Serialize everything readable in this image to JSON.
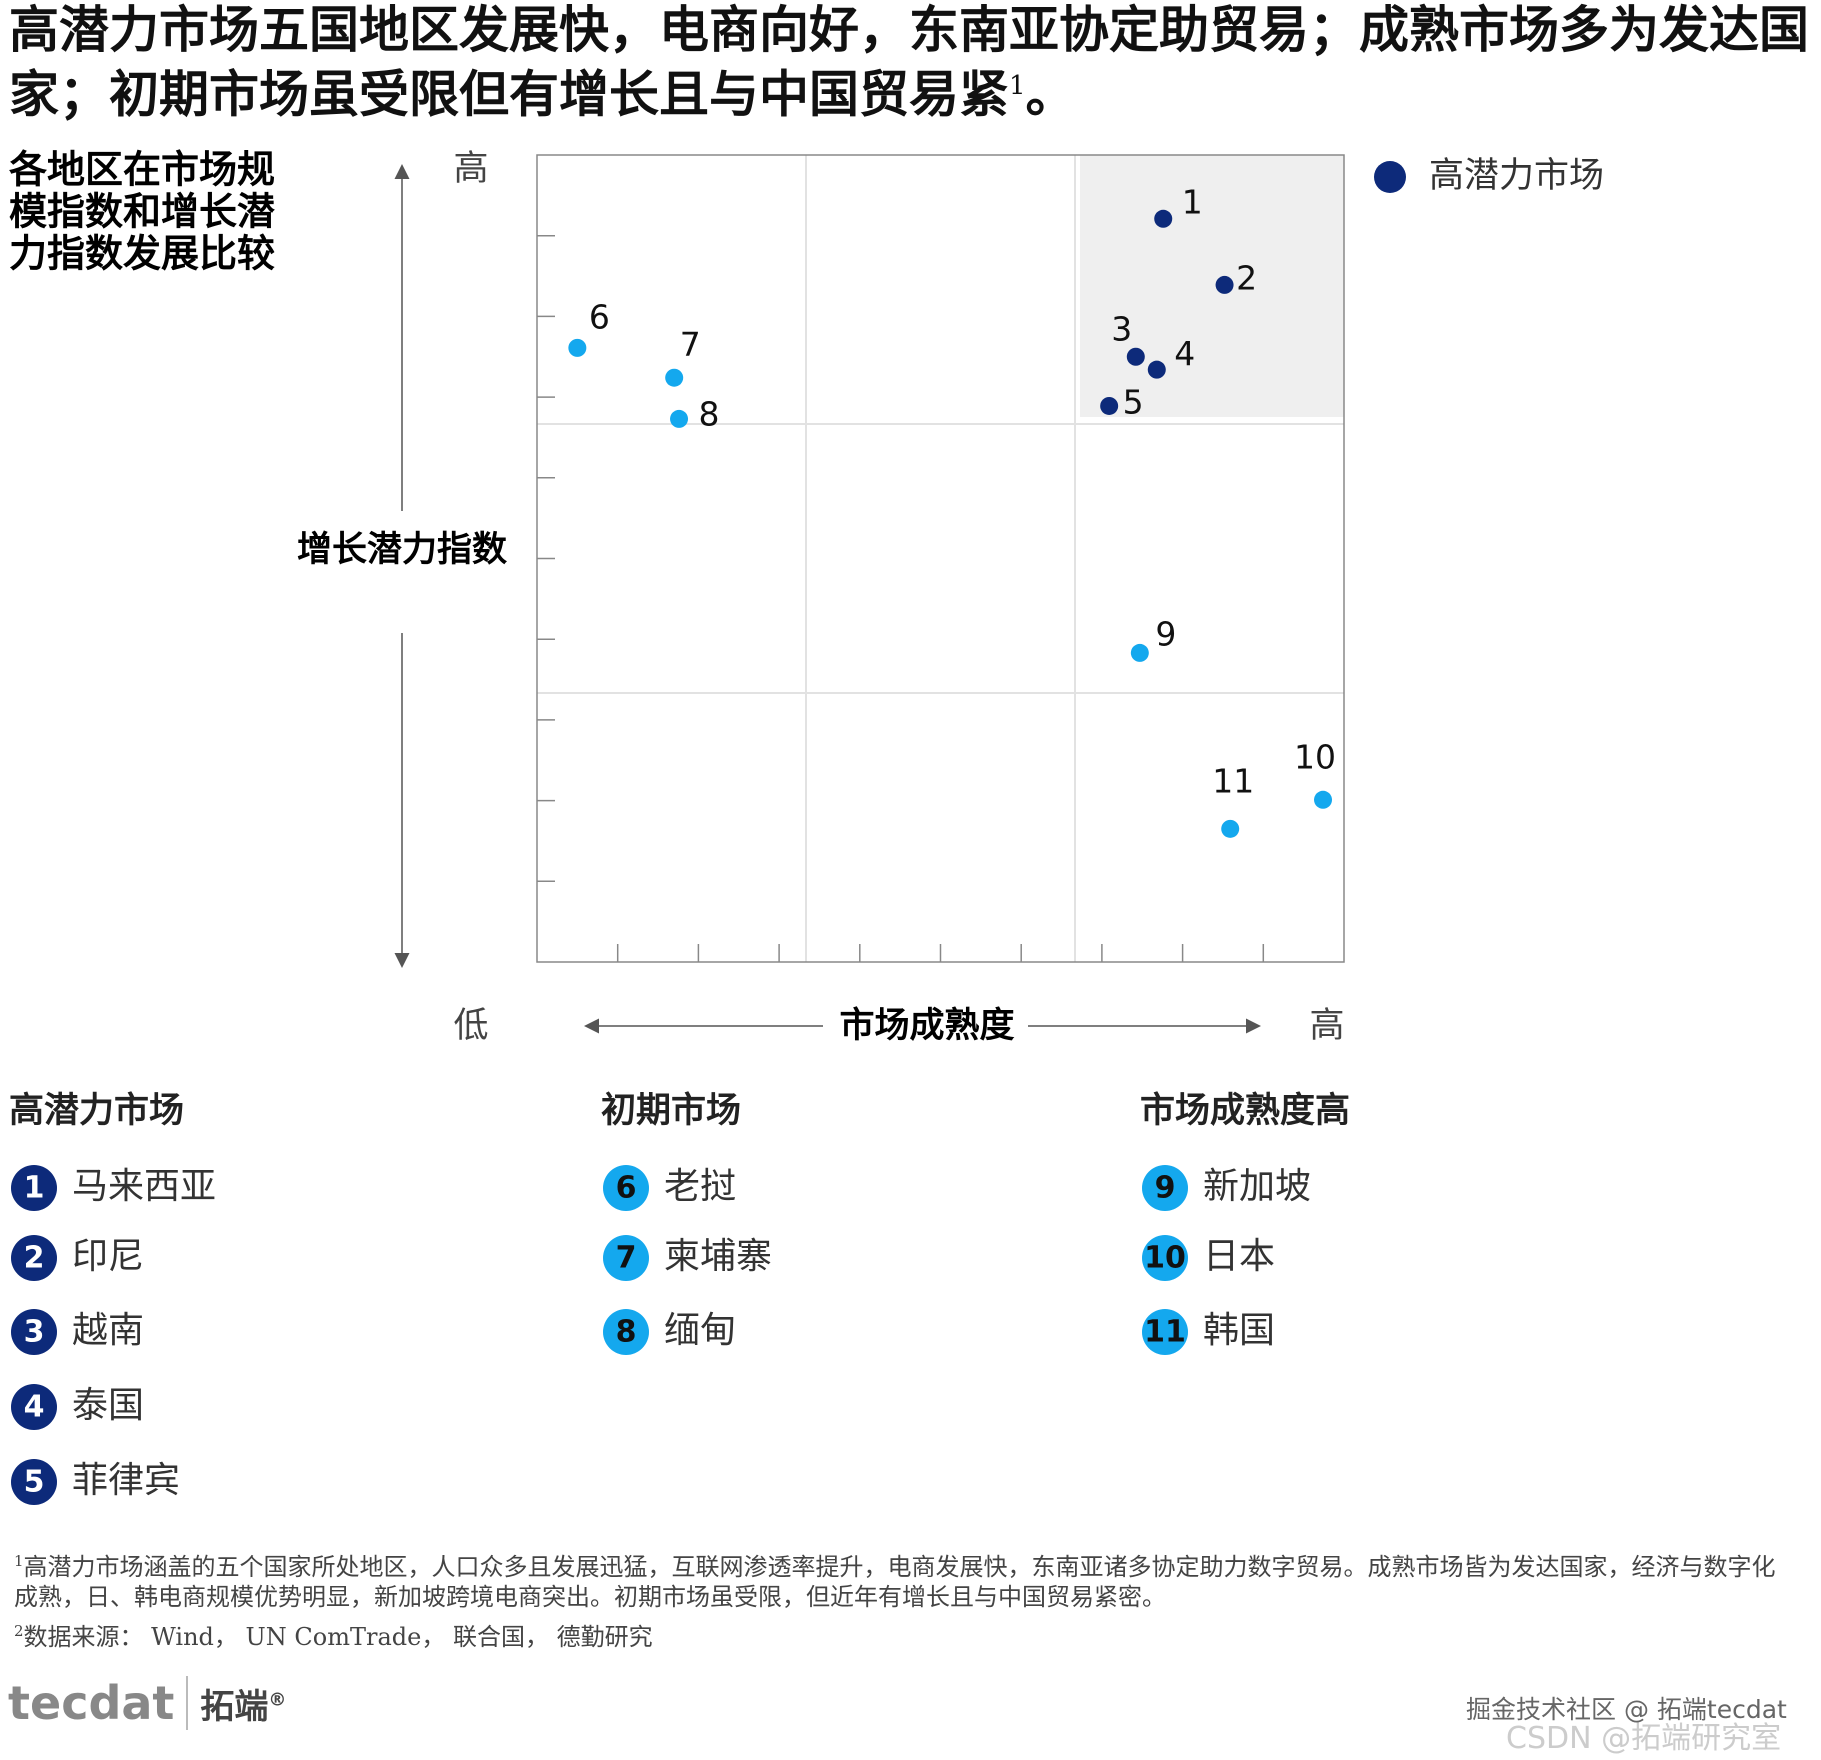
{
  "headline": {
    "text": "高潜力市场五国地区发展快，电商向好，东南亚协定助贸易；成熟市场多为发达国家；初期市场虽受限但有增长且与中国贸易紧",
    "sup": "1",
    "end": "。"
  },
  "chart_data": {
    "type": "scatter",
    "subtitle": "各地区在市场规模指数和增长潜力指数发展比较",
    "ylabel": "增长潜力指数",
    "xlabel": "市场成熟度",
    "y_high": "高",
    "axis_low": "低",
    "x_high": "高",
    "xlim": [
      0,
      10
    ],
    "ylim": [
      0,
      10
    ],
    "xticks": [
      1,
      2,
      3,
      4,
      5,
      6,
      7,
      8,
      9
    ],
    "yticks": [
      1,
      2,
      3,
      4,
      5,
      6,
      7,
      8,
      9
    ],
    "legend_position": "upper right",
    "series": [
      {
        "name": "高潜力市场",
        "color": "#0d2a7a",
        "point_labels": [
          "1",
          "2",
          "3",
          "4",
          "5"
        ],
        "x": [
          7.76,
          8.52,
          7.42,
          7.68,
          7.09
        ],
        "values": [
          9.21,
          8.39,
          7.5,
          7.34,
          6.89
        ]
      },
      {
        "color": "#14a8ee",
        "point_labels": [
          "6",
          "7",
          "8",
          "9",
          "10",
          "11"
        ],
        "x": [
          0.5,
          1.7,
          1.76,
          7.47,
          9.74,
          8.59
        ],
        "values": [
          7.61,
          7.24,
          6.73,
          3.83,
          2.01,
          1.65
        ]
      }
    ]
  },
  "groups": [
    {
      "title": "高潜力市场",
      "color": "#0d2a7a",
      "items": [
        {
          "number": "1",
          "name": "马来西亚"
        },
        {
          "number": "2",
          "name": "印尼"
        },
        {
          "number": "3",
          "name": "越南"
        },
        {
          "number": "4",
          "name": "泰国"
        },
        {
          "number": "5",
          "name": "菲律宾"
        }
      ]
    },
    {
      "title": "初期市场",
      "color": "#14a8ee",
      "items": [
        {
          "number": "6",
          "name": "老挝"
        },
        {
          "number": "7",
          "name": "柬埔寨"
        },
        {
          "number": "8",
          "name": "缅甸"
        }
      ]
    },
    {
      "title": "市场成熟度高",
      "color": "#14a8ee",
      "items": [
        {
          "number": "9",
          "name": "新加坡"
        },
        {
          "number": "10",
          "name": "日本"
        },
        {
          "number": "11",
          "name": "韩国"
        }
      ]
    }
  ],
  "footnotes": [
    {
      "mark": "1",
      "text": "高潜力市场涵盖的五个国家所处地区，人口众多且发展迅猛，互联网渗透率提升，电商发展快，东南亚诸多协定助力数字贸易。成熟市场皆为发达国家，经济与数字化成熟，日、韩电商规模优势明显，新加坡跨境电商突出。初期市场虽受限，但近年有增长且与中国贸易紧密。"
    },
    {
      "mark": "2",
      "text": "数据来源： Wind， UN ComTrade， 联合国， 德勤研究"
    }
  ],
  "logo": {
    "brand": "tecdat",
    "name": "拓端",
    "reg": "®"
  },
  "watermark": {
    "line1": "掘金技术社区 @ 拓端tecdat",
    "line2": "CSDN @拓端研究室"
  }
}
